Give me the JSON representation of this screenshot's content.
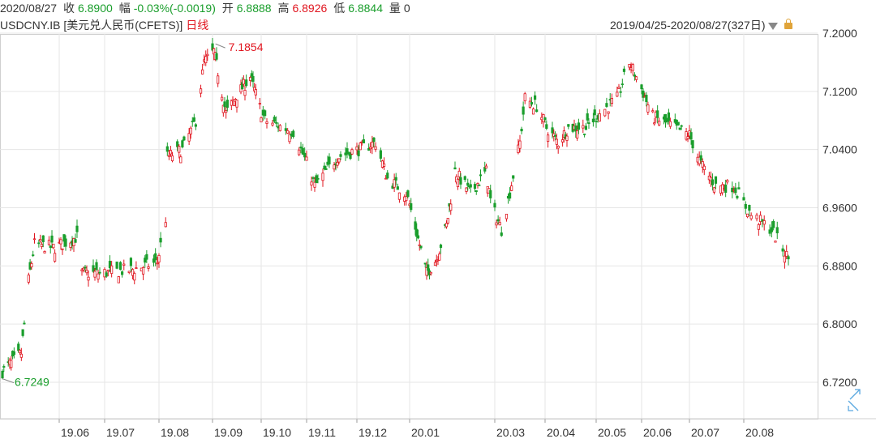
{
  "header": {
    "date": "2020/08/27",
    "close_label": "收",
    "close_value": "6.8900",
    "change_label": "幅",
    "change_value": "-0.03%(-0.0019)",
    "open_label": "开",
    "open_value": "6.8888",
    "high_label": "高",
    "high_value": "6.8926",
    "low_label": "低",
    "low_value": "6.8844",
    "volume_label": "量",
    "volume_value": "0"
  },
  "subheader": {
    "symbol": "USDCNY.IB [美元兑人民币(CFETS)]",
    "period": "日线",
    "range": "2019/04/25-2020/08/27(327日)"
  },
  "colors": {
    "up": "#e0141e",
    "down": "#1a9e2c",
    "grid": "#e6e6e6",
    "expand_icon": "#5aa8e0"
  },
  "icons": {
    "dropdown": "triangle-down-icon",
    "lock": "lock-icon",
    "expand": "expand-arrows-icon"
  },
  "chart_data": {
    "type": "candlestick",
    "y_ticks": [
      "7.2000",
      "7.1200",
      "7.0400",
      "6.9600",
      "6.8800",
      "6.8000",
      "6.7200"
    ],
    "x_ticks": [
      "19.06",
      "19.07",
      "19.08",
      "19.09",
      "19.10",
      "19.11",
      "19.12",
      "20.01",
      "20.03",
      "20.04",
      "20.05",
      "20.06",
      "20.07",
      "20.08"
    ],
    "ylim": [
      6.69,
      7.215
    ],
    "grid": true,
    "annotations": [
      {
        "label": "7.1854",
        "value": 7.1854
      },
      {
        "label": "6.7249",
        "value": 6.7249
      }
    ],
    "anchors": [
      [
        "2019-04-25",
        6.735
      ],
      [
        "2019-05-08",
        6.76
      ],
      [
        "2019-05-13",
        6.86
      ],
      [
        "2019-05-17",
        6.91
      ],
      [
        "2019-05-31",
        6.905
      ],
      [
        "2019-06-14",
        6.92
      ],
      [
        "2019-06-17",
        6.87
      ],
      [
        "2019-06-28",
        6.87
      ],
      [
        "2019-07-17",
        6.875
      ],
      [
        "2019-07-31",
        6.885
      ],
      [
        "2019-08-05",
        6.945
      ],
      [
        "2019-08-06",
        7.03
      ],
      [
        "2019-08-15",
        7.04
      ],
      [
        "2019-08-23",
        7.08
      ],
      [
        "2019-08-28",
        7.16
      ],
      [
        "2019-09-03",
        7.175
      ],
      [
        "2019-09-12",
        7.09
      ],
      [
        "2019-09-20",
        7.115
      ],
      [
        "2019-09-30",
        7.14
      ],
      [
        "2019-10-10",
        7.08
      ],
      [
        "2019-10-25",
        7.065
      ],
      [
        "2019-11-06",
        6.99
      ],
      [
        "2019-11-20",
        7.03
      ],
      [
        "2019-12-03",
        7.04
      ],
      [
        "2019-12-13",
        7.05
      ],
      [
        "2019-12-20",
        7.0
      ],
      [
        "2019-12-31",
        6.98
      ],
      [
        "2020-01-14",
        6.87
      ],
      [
        "2020-01-21",
        6.89
      ],
      [
        "2020-01-28",
        6.935
      ],
      [
        "2020-02-03",
        7.01
      ],
      [
        "2020-02-14",
        6.98
      ],
      [
        "2020-02-25",
        7.01
      ],
      [
        "2020-02-28",
        6.97
      ],
      [
        "2020-03-06",
        6.93
      ],
      [
        "2020-03-10",
        6.97
      ],
      [
        "2020-03-17",
        7.05
      ],
      [
        "2020-03-20",
        7.11
      ],
      [
        "2020-03-27",
        7.1
      ],
      [
        "2020-04-02",
        7.07
      ],
      [
        "2020-04-10",
        7.05
      ],
      [
        "2020-04-17",
        7.07
      ],
      [
        "2020-04-29",
        7.07
      ],
      [
        "2020-05-08",
        7.09
      ],
      [
        "2020-05-18",
        7.11
      ],
      [
        "2020-05-25",
        7.16
      ],
      [
        "2020-05-29",
        7.14
      ],
      [
        "2020-06-08",
        7.085
      ],
      [
        "2020-06-22",
        7.07
      ],
      [
        "2020-07-01",
        7.06
      ],
      [
        "2020-07-08",
        7.02
      ],
      [
        "2020-07-17",
        6.99
      ],
      [
        "2020-07-28",
        6.99
      ],
      [
        "2020-08-07",
        6.95
      ],
      [
        "2020-08-18",
        6.93
      ],
      [
        "2020-08-27",
        6.89
      ]
    ]
  }
}
